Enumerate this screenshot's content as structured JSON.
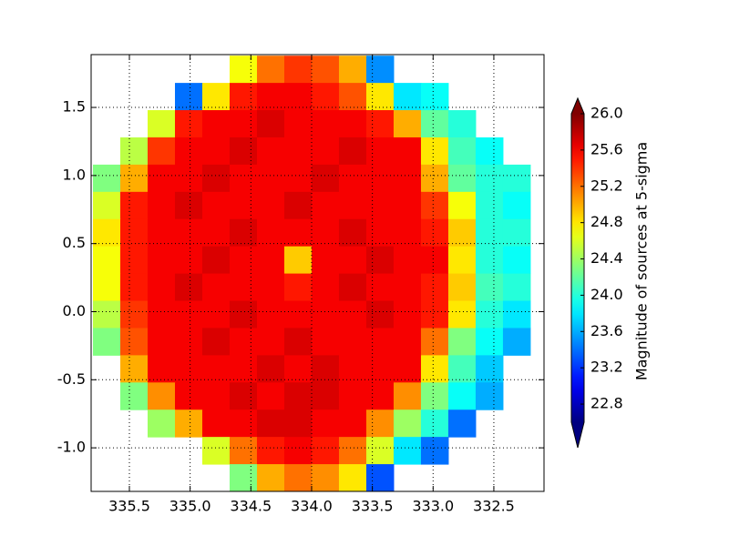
{
  "chart_data": {
    "type": "heatmap",
    "xlim": [
      335.815,
      332.087
    ],
    "ylim": [
      -1.32,
      1.888
    ],
    "xticks": [
      335.5,
      {
        "value": 335,
        "label": "335.0"
      },
      334.5,
      {
        "value": 334,
        "label": "334.0"
      },
      333.5,
      {
        "value": 333,
        "label": "333.0"
      },
      332.5
    ],
    "yticks": [
      {
        "value": -1,
        "label": "-1.0"
      },
      -0.5,
      {
        "value": 0,
        "label": "0.0"
      },
      0.5,
      {
        "value": 1,
        "label": "1.0"
      },
      1.5
    ],
    "grid": true,
    "xbins": [
      335.8,
      335.575,
      335.35,
      335.125,
      334.9,
      334.675,
      334.45,
      334.225,
      334.0,
      333.775,
      333.55,
      333.325,
      333.1,
      332.875,
      332.65,
      332.425,
      332.2
    ],
    "ybins": [
      1.88,
      1.68,
      1.48,
      1.28,
      1.08,
      0.88,
      0.68,
      0.48,
      0.28,
      0.08,
      -0.12,
      -0.32,
      -0.52,
      -0.72,
      -0.92,
      -1.12,
      -1.32
    ],
    "values": [
      [
        null,
        null,
        null,
        null,
        null,
        24.7,
        25.2,
        25.4,
        25.3,
        25.0,
        23.5,
        null,
        null,
        null,
        null,
        null
      ],
      [
        null,
        null,
        null,
        23.4,
        24.8,
        25.5,
        25.6,
        25.6,
        25.5,
        25.3,
        24.8,
        23.8,
        23.9,
        null,
        null,
        null
      ],
      [
        null,
        null,
        24.6,
        25.5,
        25.6,
        25.6,
        25.7,
        25.6,
        25.6,
        25.6,
        25.5,
        25.0,
        24.2,
        24.0,
        null,
        null
      ],
      [
        null,
        24.5,
        25.4,
        25.6,
        25.6,
        25.7,
        25.6,
        25.6,
        25.6,
        25.7,
        25.6,
        25.6,
        24.8,
        24.1,
        23.9,
        null
      ],
      [
        24.3,
        25.0,
        25.6,
        25.6,
        25.7,
        25.6,
        25.6,
        25.6,
        25.7,
        25.6,
        25.6,
        25.6,
        25.0,
        24.2,
        24.0,
        24.0
      ],
      [
        24.6,
        25.5,
        25.6,
        25.7,
        25.6,
        25.6,
        25.6,
        25.7,
        25.6,
        25.6,
        25.6,
        25.6,
        25.4,
        24.7,
        24.0,
        23.9
      ],
      [
        24.8,
        25.5,
        25.6,
        25.6,
        25.6,
        25.7,
        25.6,
        25.6,
        25.6,
        25.7,
        25.6,
        25.6,
        25.5,
        24.9,
        24.0,
        24.0
      ],
      [
        24.7,
        25.5,
        25.6,
        25.6,
        25.7,
        25.6,
        25.6,
        24.9,
        25.6,
        25.6,
        25.7,
        25.6,
        25.6,
        24.8,
        24.0,
        23.9
      ],
      [
        24.7,
        25.5,
        25.6,
        25.7,
        25.6,
        25.6,
        25.6,
        25.5,
        25.6,
        25.7,
        25.6,
        25.6,
        25.5,
        24.9,
        24.1,
        24.0
      ],
      [
        24.5,
        25.4,
        25.6,
        25.6,
        25.6,
        25.7,
        25.6,
        25.6,
        25.6,
        25.6,
        25.7,
        25.6,
        25.5,
        24.8,
        24.0,
        23.8
      ],
      [
        24.3,
        25.3,
        25.6,
        25.6,
        25.7,
        25.6,
        25.6,
        25.7,
        25.6,
        25.6,
        25.6,
        25.6,
        25.2,
        24.3,
        23.9,
        23.6
      ],
      [
        null,
        25.0,
        25.6,
        25.6,
        25.6,
        25.6,
        25.7,
        25.6,
        25.7,
        25.6,
        25.6,
        25.6,
        24.8,
        24.1,
        23.7,
        null
      ],
      [
        null,
        24.3,
        25.1,
        25.6,
        25.6,
        25.7,
        25.6,
        25.7,
        25.7,
        25.6,
        25.6,
        25.1,
        24.3,
        23.9,
        23.6,
        null
      ],
      [
        null,
        null,
        24.4,
        25.0,
        25.6,
        25.6,
        25.7,
        25.7,
        25.6,
        25.6,
        25.1,
        24.4,
        24.0,
        23.4,
        null,
        null
      ],
      [
        null,
        null,
        null,
        null,
        24.6,
        25.2,
        25.5,
        25.6,
        25.5,
        25.2,
        24.6,
        23.8,
        23.4,
        null,
        null,
        null
      ],
      [
        null,
        null,
        null,
        null,
        null,
        24.3,
        25.0,
        25.2,
        25.1,
        24.8,
        23.3,
        null,
        null,
        null,
        null,
        null
      ]
    ],
    "colormap": "jet",
    "clim": [
      22.6,
      26.0
    ],
    "cticks": [
      22.8,
      23.2,
      23.6,
      {
        "value": 24,
        "label": "24.0"
      },
      24.4,
      24.8,
      25.2,
      25.6,
      {
        "value": 26,
        "label": "26.0"
      }
    ],
    "colorbar_label": "Magnitude of sources at 5-sigma"
  }
}
